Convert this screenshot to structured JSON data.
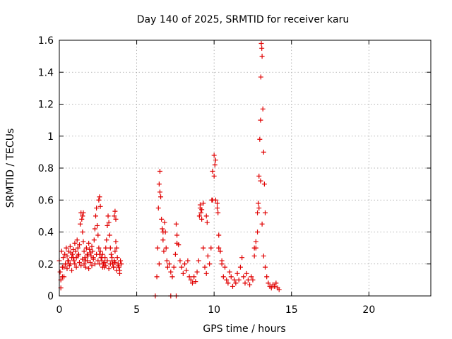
{
  "chart_data": {
    "type": "scatter",
    "title": "Day 140 of 2025, SRMTID for receiver karu",
    "xlabel": "GPS time / hours",
    "ylabel": "SRMTID / TECUs",
    "xlim": [
      0,
      24
    ],
    "ylim": [
      0,
      1.6
    ],
    "xticks": [
      0,
      5,
      10,
      15,
      20
    ],
    "yticks": [
      0,
      0.2,
      0.4,
      0.6,
      0.8,
      1,
      1.2,
      1.4,
      1.6
    ],
    "grid": true,
    "marker": "+",
    "color": "#e00000",
    "series": [
      {
        "name": "SRMTID",
        "x": [
          0.0,
          0.05,
          0.1,
          0.15,
          0.2,
          0.25,
          0.3,
          0.35,
          0.4,
          0.45,
          0.5,
          0.55,
          0.6,
          0.65,
          0.7,
          0.75,
          0.8,
          0.85,
          0.9,
          0.95,
          1.0,
          1.05,
          1.1,
          1.15,
          1.2,
          1.25,
          1.3,
          1.35,
          1.4,
          1.45,
          1.5,
          1.55,
          1.6,
          1.65,
          1.7,
          1.75,
          1.8,
          1.85,
          1.9,
          1.95,
          2.0,
          2.05,
          2.1,
          2.15,
          2.2,
          2.25,
          2.3,
          2.35,
          2.4,
          2.45,
          2.5,
          2.55,
          2.6,
          2.65,
          2.7,
          2.75,
          2.8,
          2.85,
          2.9,
          2.95,
          3.0,
          3.05,
          3.1,
          3.15,
          3.2,
          3.25,
          3.3,
          3.35,
          3.4,
          3.45,
          3.5,
          3.55,
          3.6,
          3.65,
          3.7,
          3.75,
          3.8,
          3.85,
          3.9,
          3.95,
          4.0,
          0.1,
          0.2,
          0.3,
          0.4,
          0.5,
          0.6,
          0.7,
          0.8,
          0.9,
          1.0,
          1.1,
          1.2,
          1.3,
          1.4,
          1.5,
          1.6,
          1.7,
          1.8,
          1.9,
          2.0,
          2.1,
          2.2,
          2.3,
          2.4,
          2.5,
          2.6,
          2.7,
          2.8,
          2.9,
          3.0,
          3.1,
          3.2,
          3.3,
          3.4,
          3.5,
          3.6,
          3.7,
          3.8,
          3.9,
          1.5,
          1.55,
          2.55,
          2.6,
          2.65,
          3.55,
          3.6,
          3.65,
          6.2,
          7.2,
          7.55,
          6.3,
          6.35,
          6.4,
          6.45,
          6.5,
          6.55,
          6.6,
          6.65,
          6.7,
          6.75,
          6.8,
          6.85,
          6.9,
          6.95,
          7.0,
          7.1,
          7.2,
          7.3,
          7.4,
          7.5,
          7.6,
          7.7,
          7.8,
          7.9,
          8.0,
          8.1,
          8.2,
          8.3,
          8.4,
          8.5,
          8.6,
          8.7,
          8.8,
          8.9,
          9.0,
          9.1,
          9.2,
          9.3,
          9.4,
          9.5,
          9.6,
          9.7,
          9.8,
          9.9,
          10.0,
          10.1,
          10.2,
          10.3,
          10.4,
          10.5,
          10.6,
          10.7,
          10.8,
          10.9,
          11.0,
          11.1,
          11.2,
          11.3,
          11.4,
          11.5,
          11.6,
          11.7,
          11.8,
          11.9,
          12.0,
          12.1,
          12.2,
          12.3,
          12.4,
          12.5,
          12.6,
          12.7,
          12.8,
          12.9,
          13.0,
          13.1,
          13.2,
          13.3,
          13.4,
          13.5,
          13.6,
          13.7,
          13.8,
          13.9,
          14.0,
          14.1,
          14.2,
          6.45,
          6.5,
          6.7,
          7.55,
          7.6,
          9.05,
          9.1,
          9.15,
          9.2,
          9.3,
          9.5,
          9.55,
          9.85,
          9.9,
          10.0,
          10.05,
          10.1,
          10.2,
          10.25,
          10.3,
          10.4,
          10.5,
          12.6,
          12.7,
          12.8,
          12.85,
          12.9,
          12.95,
          13.0,
          13.02,
          13.05,
          13.08,
          13.1,
          13.15,
          13.2,
          13.25,
          13.3
        ],
        "y": [
          0.22,
          0.15,
          0.1,
          0.28,
          0.18,
          0.24,
          0.12,
          0.26,
          0.2,
          0.3,
          0.25,
          0.22,
          0.28,
          0.19,
          0.31,
          0.27,
          0.24,
          0.26,
          0.29,
          0.22,
          0.33,
          0.28,
          0.24,
          0.35,
          0.3,
          0.26,
          0.32,
          0.45,
          0.52,
          0.48,
          0.4,
          0.34,
          0.28,
          0.24,
          0.22,
          0.3,
          0.26,
          0.25,
          0.33,
          0.29,
          0.27,
          0.25,
          0.31,
          0.28,
          0.24,
          0.35,
          0.42,
          0.5,
          0.55,
          0.44,
          0.38,
          0.3,
          0.26,
          0.28,
          0.24,
          0.22,
          0.26,
          0.2,
          0.18,
          0.24,
          0.3,
          0.35,
          0.44,
          0.5,
          0.46,
          0.38,
          0.3,
          0.26,
          0.22,
          0.2,
          0.18,
          0.22,
          0.28,
          0.34,
          0.3,
          0.24,
          0.2,
          0.18,
          0.16,
          0.22,
          0.2,
          0.05,
          0.12,
          0.18,
          0.2,
          0.17,
          0.22,
          0.2,
          0.16,
          0.24,
          0.2,
          0.18,
          0.25,
          0.21,
          0.19,
          0.23,
          0.2,
          0.18,
          0.22,
          0.17,
          0.21,
          0.19,
          0.23,
          0.2,
          0.26,
          0.22,
          0.2,
          0.24,
          0.18,
          0.21,
          0.19,
          0.22,
          0.17,
          0.2,
          0.24,
          0.18,
          0.21,
          0.16,
          0.19,
          0.14,
          0.5,
          0.52,
          0.6,
          0.62,
          0.56,
          0.5,
          0.53,
          0.48,
          0.0,
          0.0,
          0.0,
          0.12,
          0.3,
          0.55,
          0.7,
          0.78,
          0.62,
          0.48,
          0.42,
          0.35,
          0.28,
          0.46,
          0.4,
          0.3,
          0.22,
          0.18,
          0.2,
          0.15,
          0.12,
          0.18,
          0.26,
          0.38,
          0.32,
          0.22,
          0.18,
          0.14,
          0.2,
          0.16,
          0.22,
          0.12,
          0.1,
          0.08,
          0.12,
          0.09,
          0.15,
          0.22,
          0.55,
          0.48,
          0.3,
          0.18,
          0.14,
          0.25,
          0.2,
          0.3,
          0.6,
          0.75,
          0.85,
          0.55,
          0.3,
          0.28,
          0.22,
          0.12,
          0.18,
          0.1,
          0.08,
          0.15,
          0.12,
          0.06,
          0.1,
          0.08,
          0.14,
          0.1,
          0.18,
          0.24,
          0.12,
          0.08,
          0.14,
          0.1,
          0.07,
          0.12,
          0.1,
          0.25,
          0.3,
          0.4,
          0.55,
          0.72,
          0.45,
          0.25,
          0.18,
          0.12,
          0.08,
          0.06,
          0.05,
          0.07,
          0.06,
          0.08,
          0.05,
          0.04,
          0.2,
          0.65,
          0.4,
          0.45,
          0.33,
          0.5,
          0.57,
          0.52,
          0.54,
          0.58,
          0.5,
          0.46,
          0.6,
          0.78,
          0.88,
          0.82,
          0.6,
          0.58,
          0.52,
          0.38,
          0.28,
          0.2,
          0.3,
          0.34,
          0.52,
          0.58,
          0.75,
          0.98,
          1.1,
          1.37,
          1.58,
          1.55,
          1.5,
          1.17,
          0.9,
          0.7,
          0.52
        ]
      }
    ]
  }
}
